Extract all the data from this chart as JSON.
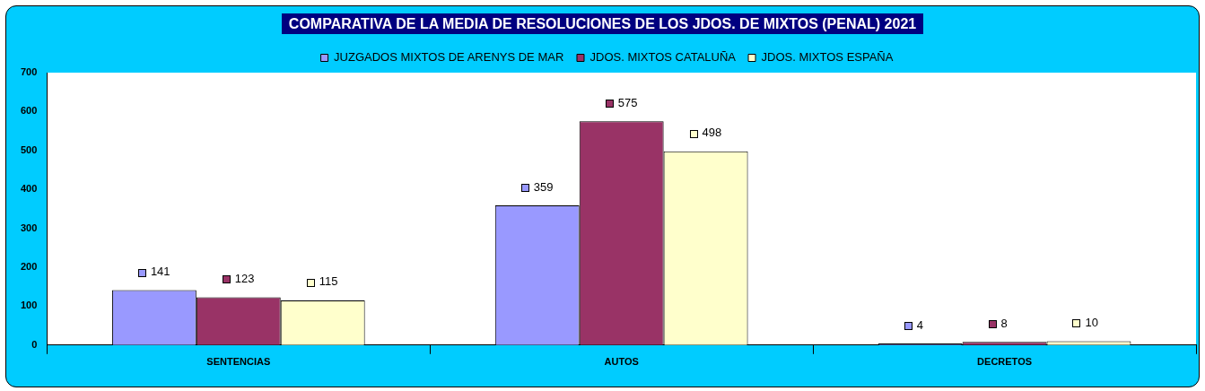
{
  "chart_data": {
    "type": "bar",
    "title": "COMPARATIVA DE LA MEDIA DE RESOLUCIONES DE LOS JDOS. DE MIXTOS (PENAL)  2021",
    "categories": [
      "SENTENCIAS",
      "AUTOS",
      "DECRETOS"
    ],
    "series": [
      {
        "name": "JUZGADOS MIXTOS DE ARENYS DE MAR",
        "color": "#9999ff",
        "values": [
          141,
          359,
          4
        ]
      },
      {
        "name": "JDOS. MIXTOS CATALUÑA",
        "color": "#993366",
        "values": [
          123,
          575,
          8
        ]
      },
      {
        "name": "JDOS. MIXTOS ESPAÑA",
        "color": "#ffffcc",
        "values": [
          115,
          498,
          10
        ]
      }
    ],
    "ylim": [
      0,
      700
    ],
    "yticks": [
      0,
      100,
      200,
      300,
      400,
      500,
      600,
      700
    ],
    "grid": false,
    "legend": "top",
    "data_labels": true
  }
}
